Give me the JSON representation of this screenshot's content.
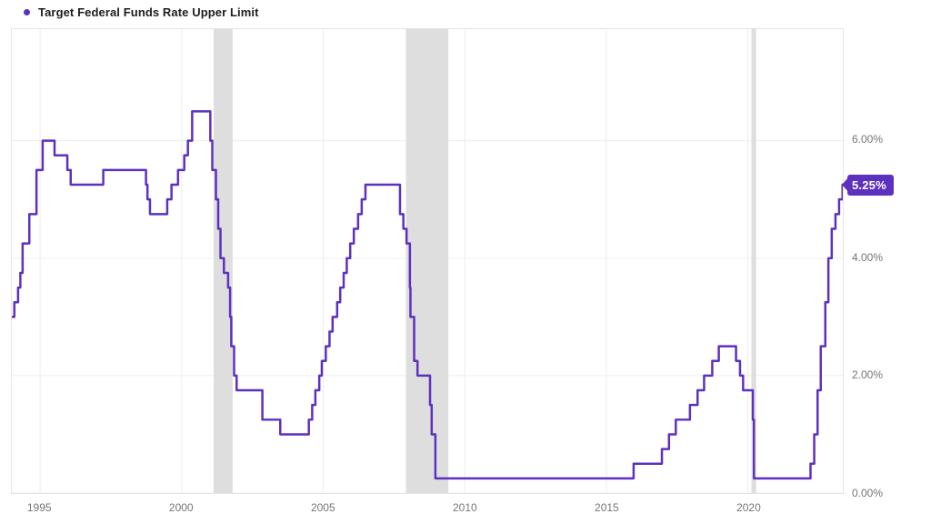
{
  "legend": {
    "items": [
      {
        "label": "Target Federal Funds Rate Upper Limit",
        "color": "#5c31c0"
      }
    ]
  },
  "chart_data": {
    "type": "line",
    "title": "Target Federal Funds Rate Upper Limit",
    "x_range": [
      1994.0,
      2023.35
    ],
    "y_range": [
      0,
      7.9
    ],
    "x_ticks": [
      {
        "value": 1995,
        "label": "1995"
      },
      {
        "value": 2000,
        "label": "2000"
      },
      {
        "value": 2005,
        "label": "2005"
      },
      {
        "value": 2010,
        "label": "2010"
      },
      {
        "value": 2015,
        "label": "2015"
      },
      {
        "value": 2020,
        "label": "2020"
      }
    ],
    "y_ticks": [
      {
        "value": 0,
        "label": "0.00%"
      },
      {
        "value": 2,
        "label": "2.00%"
      },
      {
        "value": 4,
        "label": "4.00%"
      },
      {
        "value": 6,
        "label": "6.00%"
      }
    ],
    "grid": true,
    "legend_position": "top-left",
    "recession_bands": [
      {
        "from": 2001.13,
        "to": 2001.8
      },
      {
        "from": 2007.92,
        "to": 2009.42
      },
      {
        "from": 2020.12,
        "to": 2020.29
      }
    ],
    "last_value": 5.25,
    "last_value_label": "5.25%",
    "colors": {
      "line": "#5c31c0",
      "badge_bg": "#5c31c0",
      "badge_text": "#ffffff",
      "band": "#dedede",
      "grid": "#ededed",
      "axis_text": "#757575",
      "plot_border": "#e4e4e4"
    },
    "series": [
      {
        "name": "Target Federal Funds Rate Upper Limit",
        "color": "#5c31c0",
        "step": true,
        "points": [
          [
            1994.0,
            3.0
          ],
          [
            1994.09,
            3.25
          ],
          [
            1994.22,
            3.5
          ],
          [
            1994.3,
            3.75
          ],
          [
            1994.38,
            4.25
          ],
          [
            1994.62,
            4.75
          ],
          [
            1994.87,
            5.5
          ],
          [
            1995.09,
            6.0
          ],
          [
            1995.51,
            5.75
          ],
          [
            1995.96,
            5.5
          ],
          [
            1996.08,
            5.25
          ],
          [
            1997.23,
            5.5
          ],
          [
            1998.74,
            5.25
          ],
          [
            1998.79,
            5.0
          ],
          [
            1998.88,
            4.75
          ],
          [
            1999.49,
            5.0
          ],
          [
            1999.64,
            5.25
          ],
          [
            1999.87,
            5.5
          ],
          [
            2000.09,
            5.75
          ],
          [
            2000.22,
            6.0
          ],
          [
            2000.37,
            6.5
          ],
          [
            2001.01,
            6.0
          ],
          [
            2001.08,
            5.5
          ],
          [
            2001.21,
            5.0
          ],
          [
            2001.29,
            4.5
          ],
          [
            2001.37,
            4.0
          ],
          [
            2001.49,
            3.75
          ],
          [
            2001.64,
            3.5
          ],
          [
            2001.71,
            3.0
          ],
          [
            2001.75,
            2.5
          ],
          [
            2001.85,
            2.0
          ],
          [
            2001.94,
            1.75
          ],
          [
            2002.85,
            1.25
          ],
          [
            2003.48,
            1.0
          ],
          [
            2004.49,
            1.25
          ],
          [
            2004.61,
            1.5
          ],
          [
            2004.72,
            1.75
          ],
          [
            2004.86,
            2.0
          ],
          [
            2004.95,
            2.25
          ],
          [
            2005.09,
            2.5
          ],
          [
            2005.22,
            2.75
          ],
          [
            2005.33,
            3.0
          ],
          [
            2005.49,
            3.25
          ],
          [
            2005.6,
            3.5
          ],
          [
            2005.72,
            3.75
          ],
          [
            2005.83,
            4.0
          ],
          [
            2005.95,
            4.25
          ],
          [
            2006.08,
            4.5
          ],
          [
            2006.23,
            4.75
          ],
          [
            2006.36,
            5.0
          ],
          [
            2006.49,
            5.25
          ],
          [
            2007.71,
            4.75
          ],
          [
            2007.83,
            4.5
          ],
          [
            2007.94,
            4.25
          ],
          [
            2008.06,
            3.5
          ],
          [
            2008.08,
            3.0
          ],
          [
            2008.21,
            2.25
          ],
          [
            2008.33,
            2.0
          ],
          [
            2008.77,
            1.5
          ],
          [
            2008.83,
            1.0
          ],
          [
            2008.96,
            0.25
          ],
          [
            2015.96,
            0.5
          ],
          [
            2016.96,
            0.75
          ],
          [
            2017.21,
            1.0
          ],
          [
            2017.45,
            1.25
          ],
          [
            2017.95,
            1.5
          ],
          [
            2018.22,
            1.75
          ],
          [
            2018.45,
            2.0
          ],
          [
            2018.74,
            2.25
          ],
          [
            2018.97,
            2.5
          ],
          [
            2019.58,
            2.25
          ],
          [
            2019.72,
            2.0
          ],
          [
            2019.83,
            1.75
          ],
          [
            2020.17,
            1.25
          ],
          [
            2020.21,
            0.25
          ],
          [
            2022.21,
            0.5
          ],
          [
            2022.34,
            1.0
          ],
          [
            2022.46,
            1.75
          ],
          [
            2022.57,
            2.5
          ],
          [
            2022.73,
            3.25
          ],
          [
            2022.84,
            4.0
          ],
          [
            2022.96,
            4.5
          ],
          [
            2023.09,
            4.75
          ],
          [
            2023.22,
            5.0
          ],
          [
            2023.34,
            5.25
          ]
        ]
      }
    ]
  }
}
